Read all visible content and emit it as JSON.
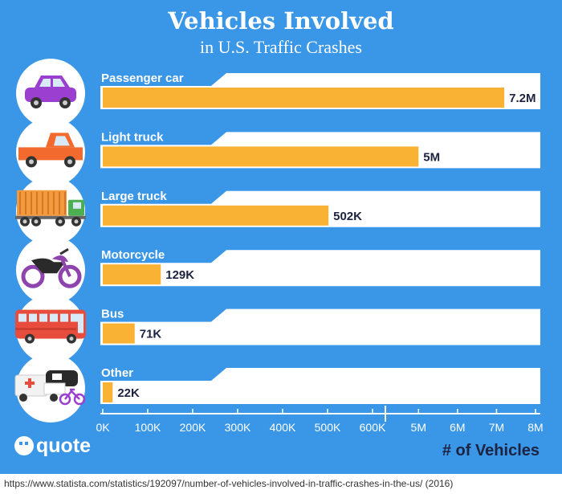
{
  "header": {
    "title": "Vehicles Involved",
    "subtitle": "in U.S. Traffic Crashes"
  },
  "brand": {
    "logo_text": "quote"
  },
  "colors": {
    "background": "#3a96e6",
    "bar": "#f9b233",
    "track": "#ffffff",
    "label": "#ffffff",
    "value_text": "#1d2340"
  },
  "chart_data": {
    "type": "bar",
    "orientation": "horizontal",
    "title": "Vehicles Involved",
    "subtitle": "in U.S. Traffic Crashes",
    "xlabel": "# of Vehicles",
    "ylabel": "",
    "categories": [
      "Passenger car",
      "Light truck",
      "Large truck",
      "Motorcycle",
      "Bus",
      "Other"
    ],
    "values": [
      7200000,
      5000000,
      502000,
      129000,
      71000,
      22000
    ],
    "value_labels": [
      "7.2M",
      "5M",
      "502K",
      "129K",
      "71K",
      "22K"
    ],
    "icons": [
      "passenger-car-icon",
      "light-truck-icon",
      "large-truck-icon",
      "motorcycle-icon",
      "bus-icon",
      "other-vehicles-icon"
    ],
    "axis": {
      "broken": true,
      "lower_segment": {
        "range": [
          0,
          600000
        ],
        "ticks": [
          "0K",
          "100K",
          "200K",
          "300K",
          "400K",
          "500K",
          "600K"
        ]
      },
      "upper_segment": {
        "range": [
          4500000,
          8000000
        ],
        "ticks": [
          "5M",
          "6M",
          "7M",
          "8M"
        ]
      }
    },
    "grid": false,
    "legend": "none"
  },
  "source": "https://www.statista.com/statistics/192097/number-of-vehicles-involved-in-traffic-crashes-in-the-us/ (2016)"
}
